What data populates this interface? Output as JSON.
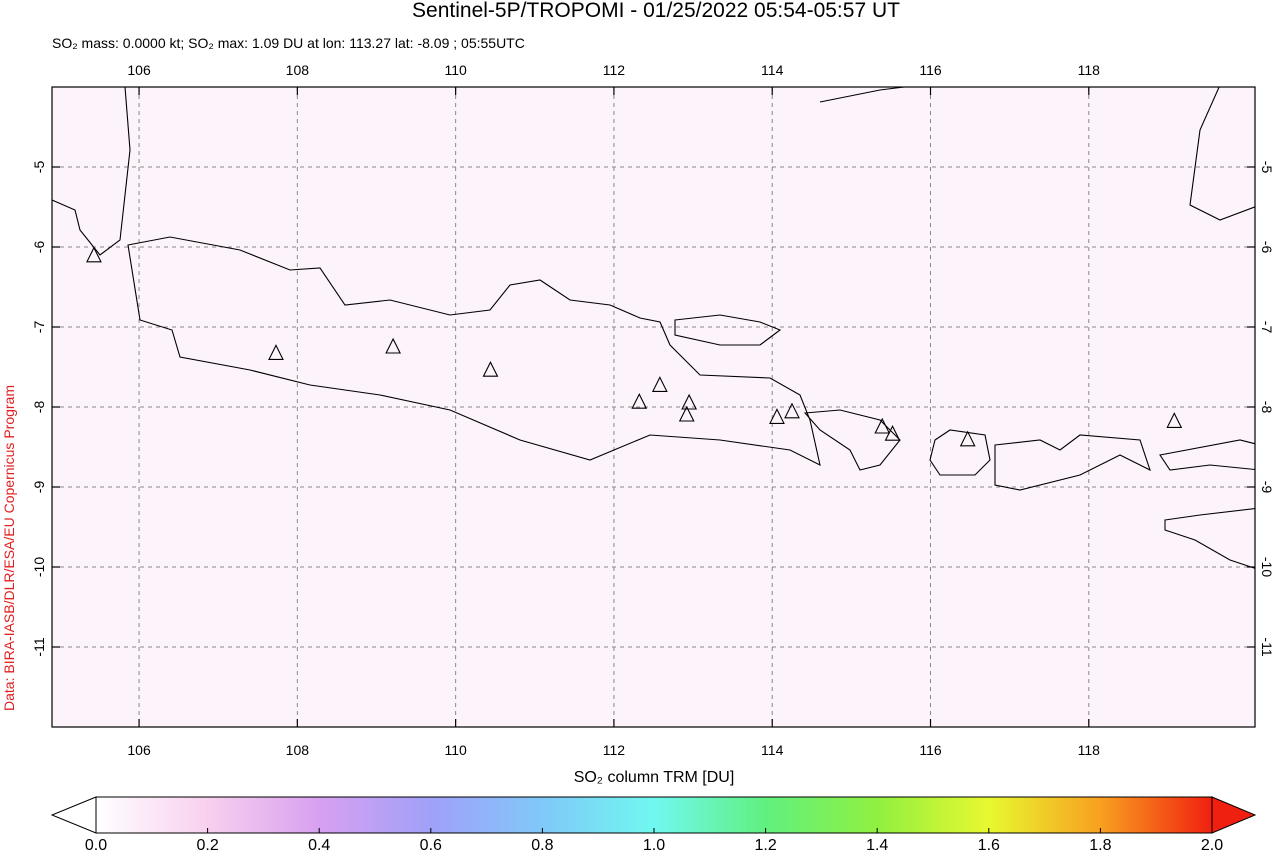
{
  "map": {
    "title": "Sentinel-5P/TROPOMI - 01/25/2022 05:54-05:57 UT",
    "subtitle": "SO₂ mass: 0.0000 kt; SO₂ max: 1.09 DU at lon: 113.27 lat: -8.09 ; 05:55UTC",
    "credit": "Data: BIRA-IASB/DLR/ESA/EU Copernicus Program",
    "xlim": [
      104.9,
      120.1
    ],
    "ylim": [
      -12,
      -4
    ],
    "xticks": [
      106,
      108,
      110,
      112,
      114,
      116,
      118
    ],
    "yticks": [
      -5,
      -6,
      -7,
      -8,
      -9,
      -10,
      -11
    ],
    "grid": true,
    "volcanoes": {
      "lon": [
        105.43,
        107.73,
        109.21,
        110.44,
        112.32,
        112.58,
        112.95,
        112.92,
        114.06,
        114.25,
        115.39,
        115.52,
        116.47,
        119.08
      ],
      "lat": [
        -6.11,
        -7.33,
        -7.25,
        -7.54,
        -7.94,
        -7.73,
        -7.95,
        -8.1,
        -8.13,
        -8.06,
        -8.25,
        -8.34,
        -8.41,
        -8.18
      ]
    },
    "colorbar": {
      "label": "SO₂ column TRM [DU]",
      "lim": [
        0,
        2
      ],
      "ticks": [
        {
          "value": 0,
          "label": "0.0"
        },
        {
          "value": 0.2,
          "label": "0.2"
        },
        {
          "value": 0.4,
          "label": "0.4"
        },
        {
          "value": 0.6,
          "label": "0.6"
        },
        {
          "value": 0.8,
          "label": "0.8"
        },
        {
          "value": 1,
          "label": "1.0"
        },
        {
          "value": 1.2,
          "label": "1.2"
        },
        {
          "value": 1.4,
          "label": "1.4"
        },
        {
          "value": 1.6,
          "label": "1.6"
        },
        {
          "value": 1.8,
          "label": "1.8"
        },
        {
          "value": 2,
          "label": "2.0"
        }
      ],
      "colors": [
        "#ffffff",
        "#f8d0ee",
        "#d8a0f0",
        "#a0a0f8",
        "#80c8f8",
        "#70f8f0",
        "#60f080",
        "#90f040",
        "#e8f830",
        "#f8a020",
        "#f02010"
      ]
    }
  }
}
